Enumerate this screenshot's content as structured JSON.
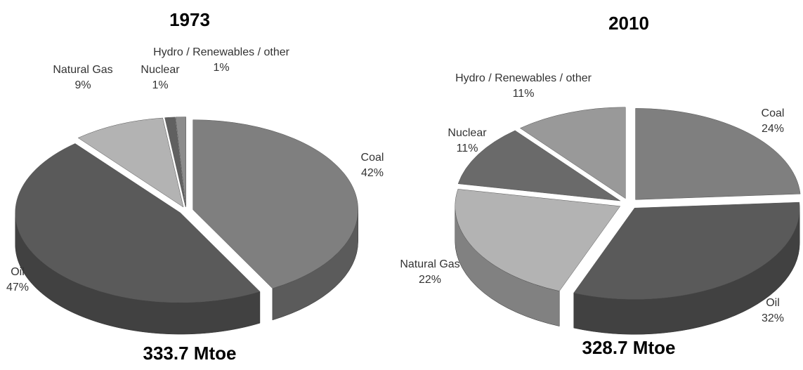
{
  "chart_data": [
    {
      "type": "pie",
      "title": "1973",
      "subtitle": "333.7 Mtoe",
      "categories": [
        "Coal",
        "Oil",
        "Natural Gas",
        "Nuclear",
        "Hydro / Renewables / other"
      ],
      "values": [
        42,
        47,
        9,
        1,
        1
      ],
      "value_labels": [
        "42%",
        "47%",
        "9%",
        "1%",
        "1%"
      ],
      "colors": [
        "#7f7f7f",
        "#5a5a5a",
        "#b3b3b3",
        "#606060",
        "#8c8c8c"
      ]
    },
    {
      "type": "pie",
      "title": "2010",
      "subtitle": "328.7 Mtoe",
      "categories": [
        "Coal",
        "Oil",
        "Natural Gas",
        "Nuclear",
        "Hydro / Renewables / other"
      ],
      "values": [
        24,
        32,
        22,
        11,
        11
      ],
      "value_labels": [
        "24%",
        "32%",
        "22%",
        "11%",
        "11%"
      ],
      "colors": [
        "#7f7f7f",
        "#5a5a5a",
        "#b3b3b3",
        "#6a6a6a",
        "#999999"
      ]
    }
  ]
}
